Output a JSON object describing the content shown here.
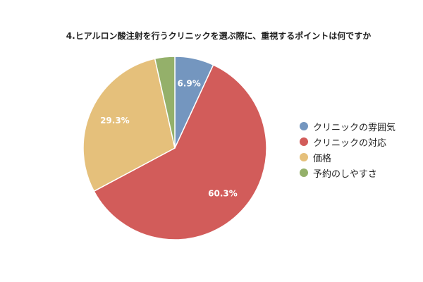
{
  "chart_data": {
    "type": "pie",
    "title": "4.ヒアルロン酸注射を行うクリニックを選ぶ際に、重視するポイントは何ですか",
    "slices": [
      {
        "label": "クリニックの雰囲気",
        "value": 6.9,
        "value_label": "6.9%",
        "color": "#7496bf"
      },
      {
        "label": "クリニックの対応",
        "value": 60.3,
        "value_label": "60.3%",
        "color": "#d25c5a"
      },
      {
        "label": "価格",
        "value": 29.3,
        "value_label": "29.3%",
        "color": "#e5c07b"
      },
      {
        "label": "予約のしやすさ",
        "value": 3.5,
        "value_label": "",
        "color": "#94b06a"
      }
    ],
    "legend_position": "right"
  }
}
